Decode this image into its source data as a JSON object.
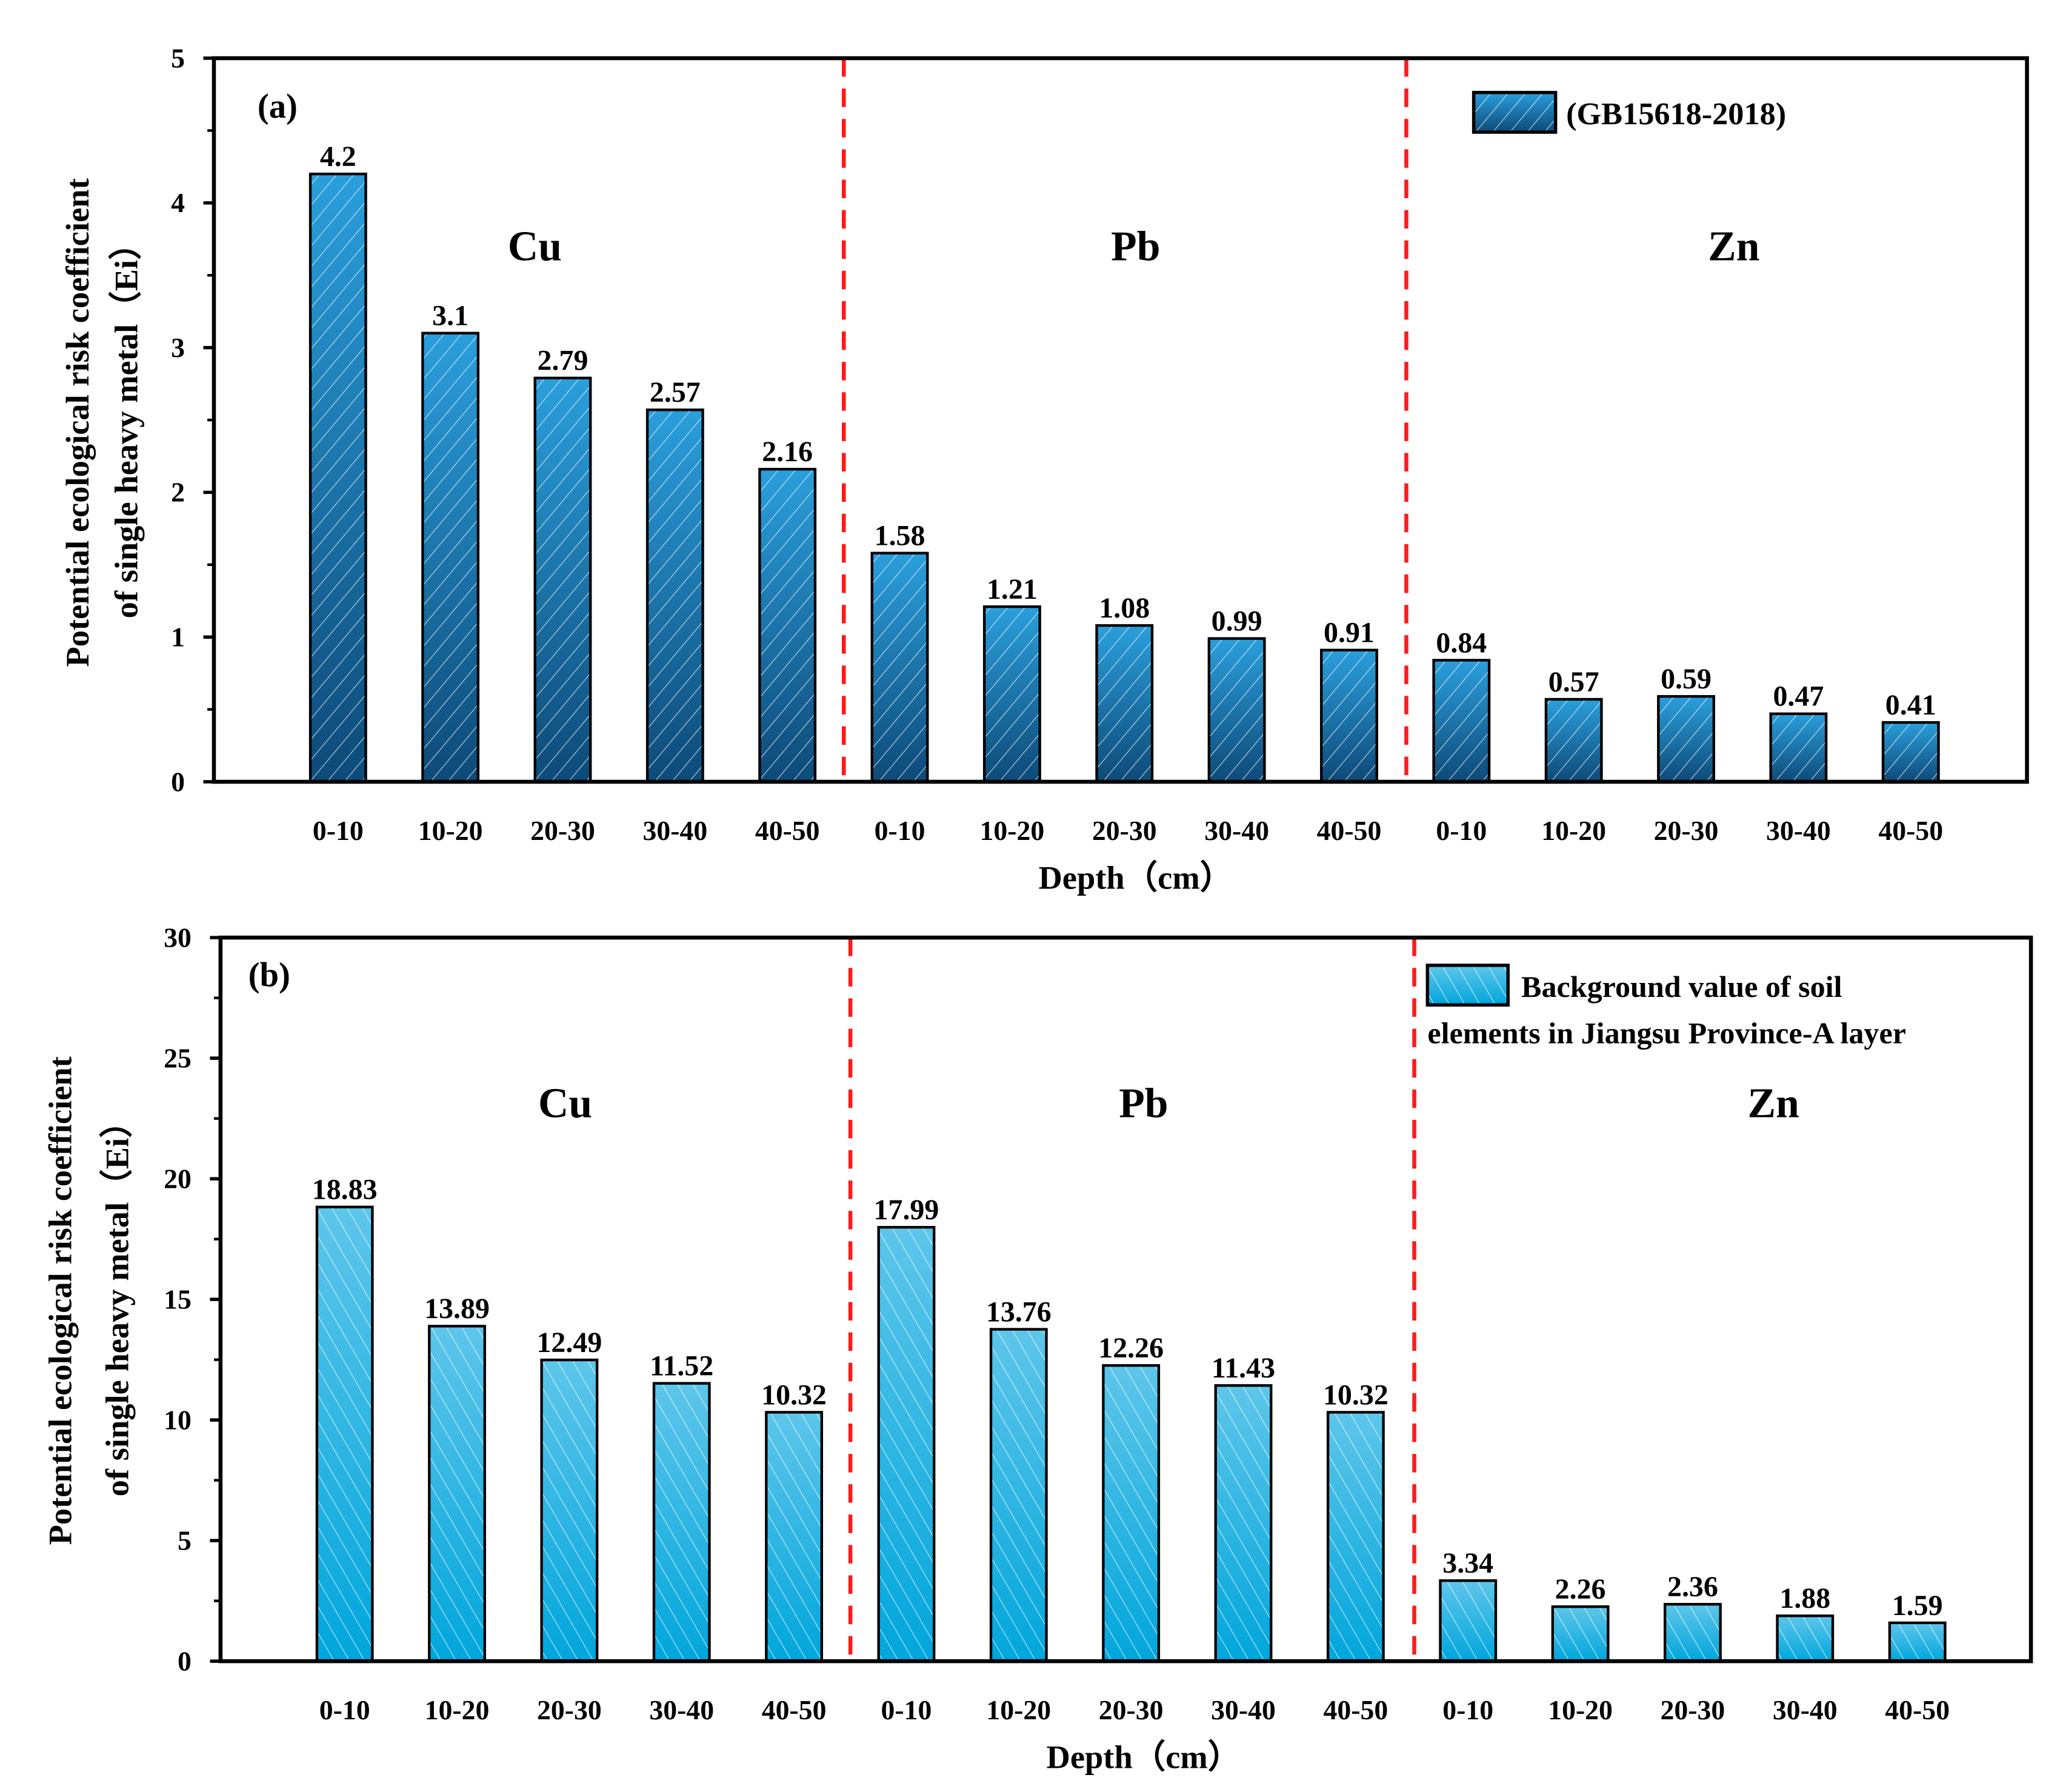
{
  "chart_data": [
    {
      "type": "bar",
      "panel_label": "(a)",
      "legend": "(GB15618-2018)",
      "legend_position": "top-right",
      "groups": [
        "Cu",
        "Pb",
        "Zn"
      ],
      "categories": [
        "0-10",
        "10-20",
        "20-30",
        "30-40",
        "40-50",
        "0-10",
        "10-20",
        "20-30",
        "30-40",
        "40-50",
        "0-10",
        "10-20",
        "20-30",
        "30-40",
        "40-50"
      ],
      "values": [
        4.2,
        3.1,
        2.79,
        2.57,
        2.16,
        1.58,
        1.21,
        1.08,
        0.99,
        0.91,
        0.84,
        0.57,
        0.59,
        0.47,
        0.41
      ],
      "value_labels": [
        "4.2",
        "3.1",
        "2.79",
        "2.57",
        "2.16",
        "1.58",
        "1.21",
        "1.08",
        "0.99",
        "0.91",
        "0.84",
        "0.57",
        "0.59",
        "0.47",
        "0.41"
      ],
      "xlabel": "Depth（cm）",
      "ylabel_line1": "Potential ecological risk coefficient",
      "ylabel_line2": "of single heavy metal（Ei）",
      "ylim": [
        0,
        5
      ],
      "yticks": [
        "0",
        "1",
        "2",
        "3",
        "4",
        "5"
      ],
      "colors": {
        "top": "#2a9fdc",
        "bottom": "#0d4a78",
        "divider": "#ff1a1a"
      }
    },
    {
      "type": "bar",
      "panel_label": "(b)",
      "legend": "Background value of soil elements in Jiangsu Province-A layer",
      "legend_line1": "Background value of soil",
      "legend_line2": "elements in Jiangsu Province-A layer",
      "legend_position": "top-right",
      "groups": [
        "Cu",
        "Pb",
        "Zn"
      ],
      "categories": [
        "0-10",
        "10-20",
        "20-30",
        "30-40",
        "40-50",
        "0-10",
        "10-20",
        "20-30",
        "30-40",
        "40-50",
        "0-10",
        "10-20",
        "20-30",
        "30-40",
        "40-50"
      ],
      "values": [
        18.83,
        13.89,
        12.49,
        11.52,
        10.32,
        17.99,
        13.76,
        12.26,
        11.43,
        10.32,
        3.34,
        2.26,
        2.36,
        1.88,
        1.59
      ],
      "value_labels": [
        "18.83",
        "13.89",
        "12.49",
        "11.52",
        "10.32",
        "17.99",
        "13.76",
        "12.26",
        "11.43",
        "10.32",
        "3.34",
        "2.26",
        "2.36",
        "1.88",
        "1.59"
      ],
      "xlabel": "Depth（cm）",
      "ylabel_line1": "Potential ecological risk coefficient",
      "ylabel_line2": "of single heavy metal（Ei）",
      "ylim": [
        0,
        30
      ],
      "yticks": [
        "0",
        "5",
        "10",
        "15",
        "20",
        "25",
        "30"
      ],
      "colors": {
        "top": "#5ec6ea",
        "bottom": "#00a6dc",
        "divider": "#ff1a1a"
      }
    }
  ]
}
